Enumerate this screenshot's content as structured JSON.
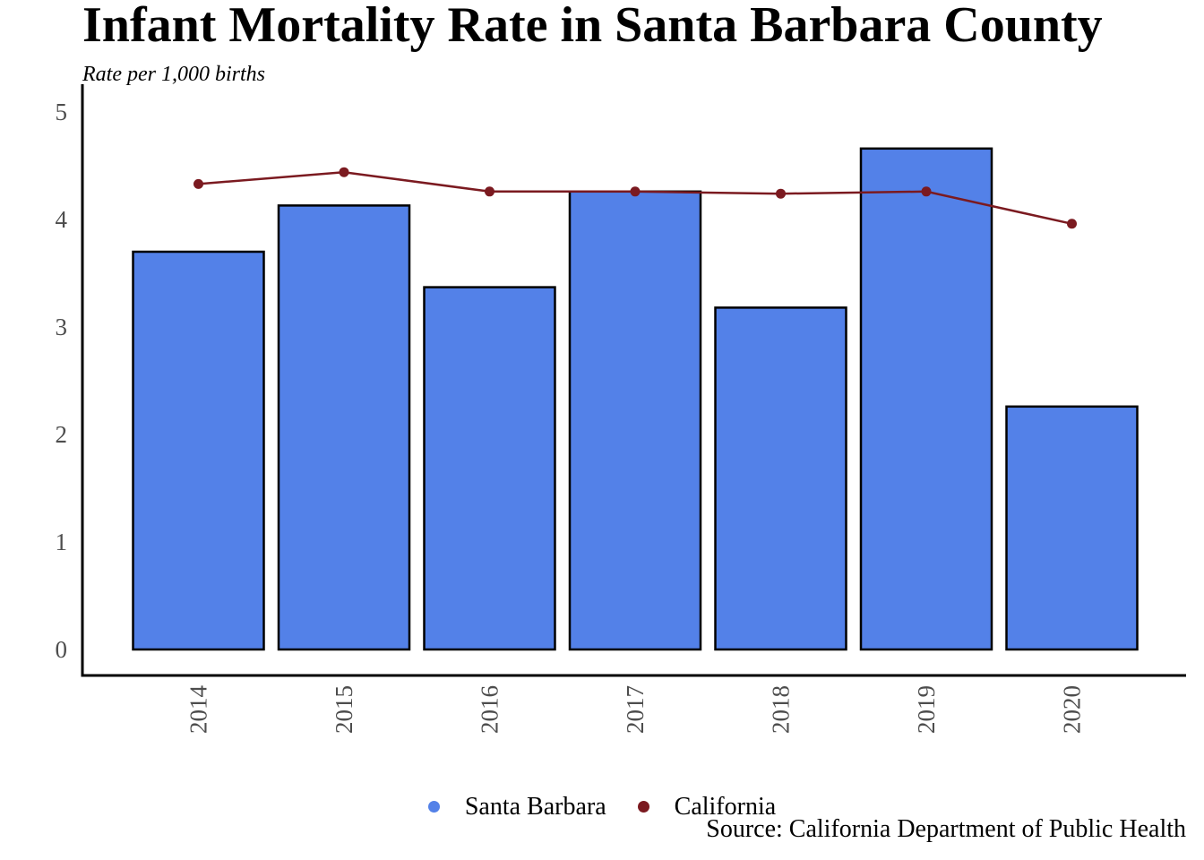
{
  "chart_data": {
    "type": "bar",
    "title": "Infant Mortality Rate in Santa Barbara County",
    "subtitle": "Rate per 1,000 births",
    "xlabel": "",
    "ylabel": "",
    "categories": [
      "2014",
      "2015",
      "2016",
      "2017",
      "2018",
      "2019",
      "2020"
    ],
    "y_ticks": [
      "0",
      "1",
      "2",
      "3",
      "4",
      "5"
    ],
    "ylim": [
      0,
      5
    ],
    "series": [
      {
        "name": "Santa Barbara",
        "type": "bar",
        "color": "#5381E8",
        "values": [
          3.7,
          4.13,
          3.37,
          4.26,
          3.18,
          4.66,
          2.26
        ]
      },
      {
        "name": "California",
        "type": "line",
        "color": "#7B1A20",
        "values": [
          4.33,
          4.44,
          4.26,
          4.26,
          4.24,
          4.26,
          3.96
        ]
      }
    ],
    "legend_position": "bottom",
    "grid": false,
    "caption": "Source: California Department of Public Health"
  }
}
